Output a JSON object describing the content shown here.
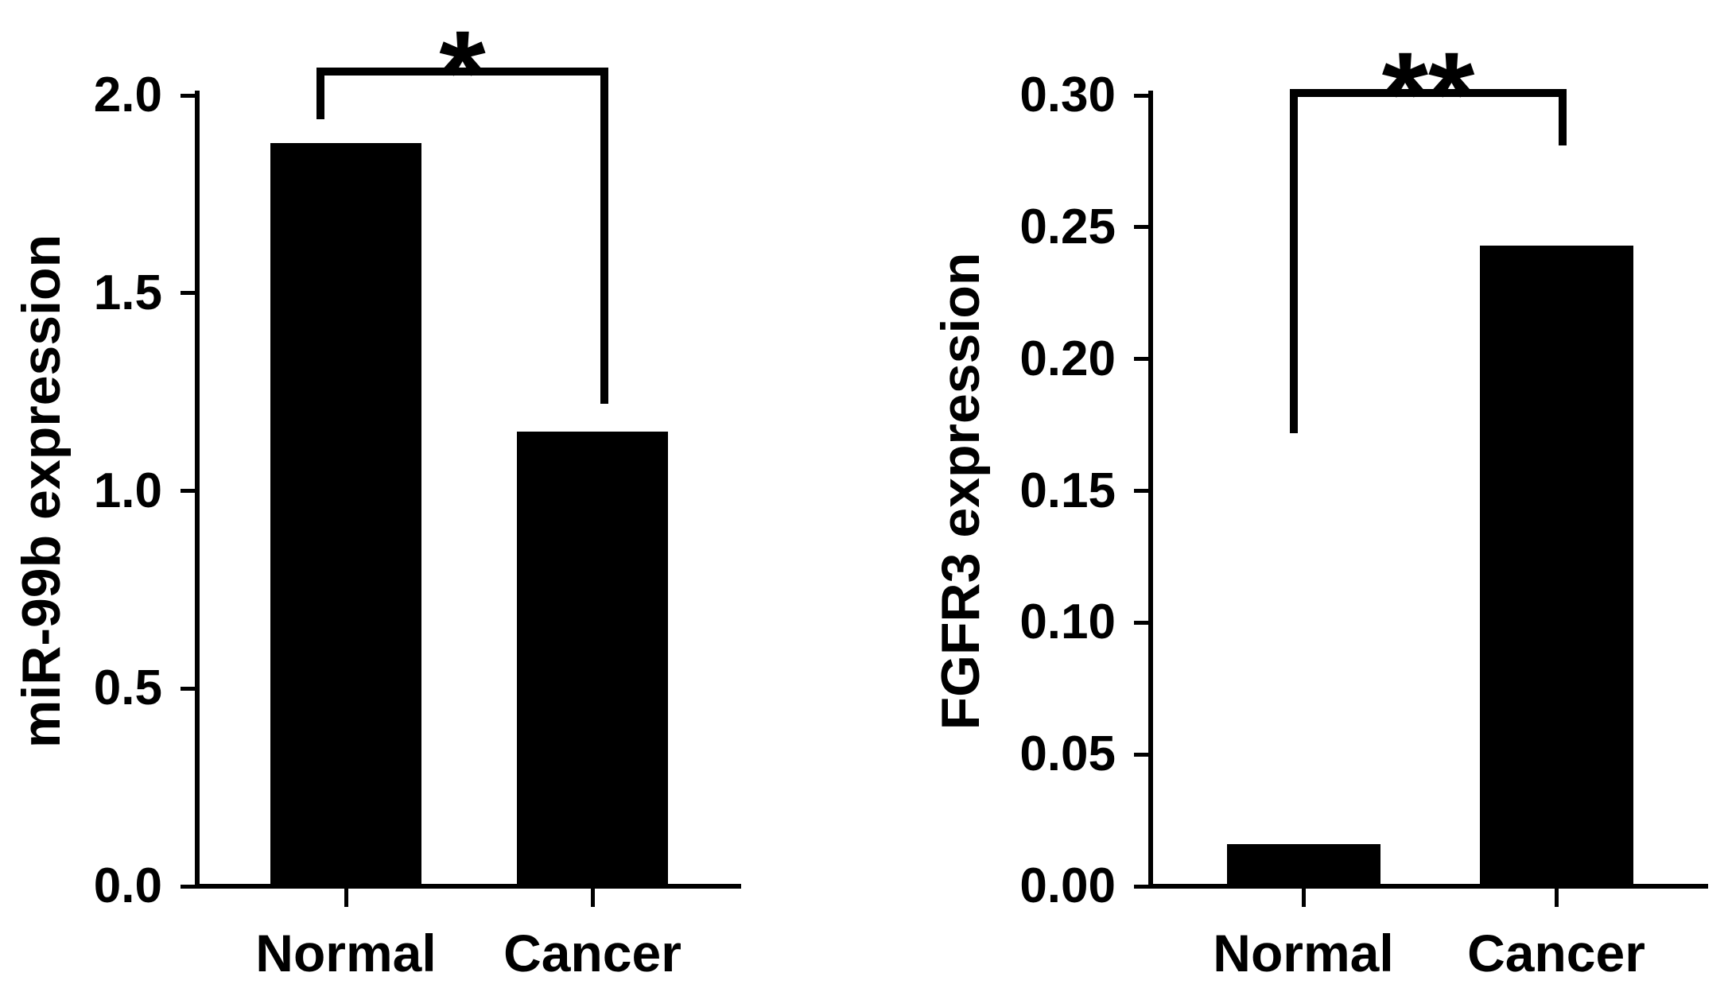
{
  "page": {
    "background_color": "#ffffff",
    "ink_color": "#000000",
    "description": "Two-panel bar chart figure comparing expression in Normal vs Cancer tissue"
  },
  "chart_data": [
    {
      "type": "bar",
      "title": "",
      "categories": [
        "Normal",
        "Cancer"
      ],
      "values": [
        1.88,
        1.15
      ],
      "xlabel": "",
      "ylabel": "miR-99b expression",
      "ylim": [
        0,
        2.0
      ],
      "yticks": [
        "2.0",
        "1.5",
        "1.0",
        "0.5",
        "0.0"
      ],
      "bar_color": "#000000",
      "grid": false,
      "legend": "none",
      "significance": {
        "label": "*",
        "line_y": 2.06,
        "arm_bottoms": [
          1.94,
          1.22
        ]
      }
    },
    {
      "type": "bar",
      "title": "",
      "categories": [
        "Normal",
        "Cancer"
      ],
      "values": [
        0.016,
        0.243
      ],
      "xlabel": "",
      "ylabel": "FGFR3 expression",
      "ylim": [
        0,
        0.3
      ],
      "yticks": [
        "0.30",
        "0.25",
        "0.20",
        "0.15",
        "0.10",
        "0.05",
        "0.00"
      ],
      "bar_color": "#000000",
      "grid": false,
      "legend": "none",
      "significance": {
        "label": "**",
        "line_y": 0.301,
        "arm_bottoms": [
          0.172,
          0.281
        ]
      }
    }
  ]
}
